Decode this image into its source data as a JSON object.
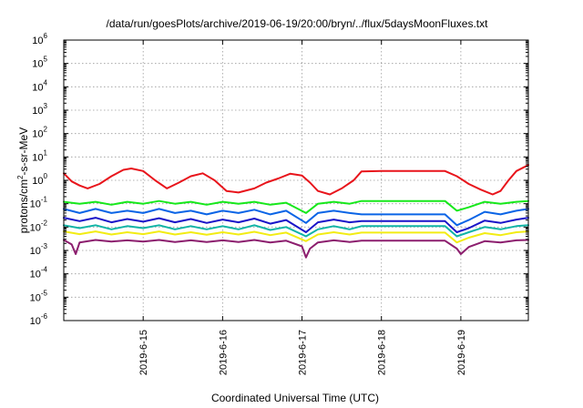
{
  "chart_data": {
    "type": "line",
    "title": "/data/run/goesPlots/archive/2019-06-19/20:00/bryn/../flux/5daysMoonFluxes.txt",
    "xlabel": "Coordinated Universal Time (UTC)",
    "ylabel": {
      "before": "protons/cm",
      "sup": "2",
      "after": "-s-sr-MeV"
    },
    "y_scale": "log",
    "ylim": [
      1e-06,
      1000000.0
    ],
    "y_ticks": [
      {
        "base": "10",
        "exp": "-6",
        "value": 1e-06
      },
      {
        "base": "10",
        "exp": "-5",
        "value": 1e-05
      },
      {
        "base": "10",
        "exp": "-4",
        "value": 0.0001
      },
      {
        "base": "10",
        "exp": "-3",
        "value": 0.001
      },
      {
        "base": "10",
        "exp": "-2",
        "value": 0.01
      },
      {
        "base": "10",
        "exp": "-1",
        "value": 0.1
      },
      {
        "base": "10",
        "exp": "0",
        "value": 1
      },
      {
        "base": "10",
        "exp": "1",
        "value": 10
      },
      {
        "base": "10",
        "exp": "2",
        "value": 100
      },
      {
        "base": "10",
        "exp": "3",
        "value": 1000
      },
      {
        "base": "10",
        "exp": "4",
        "value": 10000
      },
      {
        "base": "10",
        "exp": "5",
        "value": 100000
      },
      {
        "base": "10",
        "exp": "6",
        "value": 1000000
      }
    ],
    "xlim": [
      14.0,
      19.85
    ],
    "x_ticks": [
      {
        "label": "2019-6-15",
        "value": 15
      },
      {
        "label": "2019-6-16",
        "value": 16
      },
      {
        "label": "2019-6-17",
        "value": 17
      },
      {
        "label": "2019-6-18",
        "value": 18
      },
      {
        "label": "2019-6-19",
        "value": 19
      }
    ],
    "grid": true,
    "legend": "none",
    "series": [
      {
        "color": "#e8141b",
        "values": [
          [
            14.0,
            2.0
          ],
          [
            14.1,
            0.9
          ],
          [
            14.2,
            0.6
          ],
          [
            14.3,
            0.45
          ],
          [
            14.45,
            0.7
          ],
          [
            14.6,
            1.5
          ],
          [
            14.75,
            2.8
          ],
          [
            14.85,
            3.2
          ],
          [
            15.0,
            2.5
          ],
          [
            15.15,
            1.0
          ],
          [
            15.3,
            0.45
          ],
          [
            15.45,
            0.8
          ],
          [
            15.6,
            1.5
          ],
          [
            15.75,
            2.0
          ],
          [
            15.9,
            1.0
          ],
          [
            16.05,
            0.35
          ],
          [
            16.2,
            0.3
          ],
          [
            16.4,
            0.45
          ],
          [
            16.55,
            0.8
          ],
          [
            16.7,
            1.2
          ],
          [
            16.85,
            1.9
          ],
          [
            17.0,
            1.6
          ],
          [
            17.1,
            0.8
          ],
          [
            17.2,
            0.35
          ],
          [
            17.35,
            0.25
          ],
          [
            17.5,
            0.45
          ],
          [
            17.65,
            1.0
          ],
          [
            17.75,
            2.4
          ],
          [
            18.0,
            2.5
          ],
          [
            18.5,
            2.5
          ],
          [
            18.8,
            2.5
          ],
          [
            18.95,
            1.5
          ],
          [
            19.1,
            0.7
          ],
          [
            19.25,
            0.4
          ],
          [
            19.4,
            0.25
          ],
          [
            19.5,
            0.35
          ],
          [
            19.6,
            1.0
          ],
          [
            19.7,
            2.5
          ],
          [
            19.85,
            4.5
          ]
        ]
      },
      {
        "color": "#16e81b",
        "values": [
          [
            14.0,
            0.12
          ],
          [
            14.2,
            0.1
          ],
          [
            14.4,
            0.12
          ],
          [
            14.6,
            0.09
          ],
          [
            14.8,
            0.12
          ],
          [
            15.0,
            0.1
          ],
          [
            15.2,
            0.13
          ],
          [
            15.4,
            0.1
          ],
          [
            15.6,
            0.12
          ],
          [
            15.8,
            0.09
          ],
          [
            16.0,
            0.12
          ],
          [
            16.2,
            0.1
          ],
          [
            16.4,
            0.12
          ],
          [
            16.6,
            0.09
          ],
          [
            16.8,
            0.11
          ],
          [
            17.05,
            0.04
          ],
          [
            17.2,
            0.1
          ],
          [
            17.4,
            0.12
          ],
          [
            17.6,
            0.1
          ],
          [
            17.75,
            0.13
          ],
          [
            18.8,
            0.13
          ],
          [
            18.95,
            0.05
          ],
          [
            19.1,
            0.07
          ],
          [
            19.3,
            0.12
          ],
          [
            19.5,
            0.1
          ],
          [
            19.7,
            0.12
          ],
          [
            19.85,
            0.13
          ]
        ]
      },
      {
        "color": "#0a64e6",
        "values": [
          [
            14.0,
            0.06
          ],
          [
            14.2,
            0.04
          ],
          [
            14.4,
            0.06
          ],
          [
            14.6,
            0.04
          ],
          [
            14.8,
            0.05
          ],
          [
            15.0,
            0.04
          ],
          [
            15.2,
            0.06
          ],
          [
            15.4,
            0.04
          ],
          [
            15.6,
            0.05
          ],
          [
            15.8,
            0.035
          ],
          [
            16.0,
            0.05
          ],
          [
            16.2,
            0.04
          ],
          [
            16.4,
            0.055
          ],
          [
            16.6,
            0.035
          ],
          [
            16.8,
            0.05
          ],
          [
            17.05,
            0.015
          ],
          [
            17.2,
            0.04
          ],
          [
            17.4,
            0.05
          ],
          [
            17.6,
            0.04
          ],
          [
            17.75,
            0.035
          ],
          [
            18.8,
            0.035
          ],
          [
            18.95,
            0.012
          ],
          [
            19.1,
            0.02
          ],
          [
            19.3,
            0.045
          ],
          [
            19.5,
            0.035
          ],
          [
            19.7,
            0.05
          ],
          [
            19.85,
            0.06
          ]
        ]
      },
      {
        "color": "#1a14c8",
        "values": [
          [
            14.0,
            0.025
          ],
          [
            14.2,
            0.018
          ],
          [
            14.4,
            0.025
          ],
          [
            14.6,
            0.016
          ],
          [
            14.8,
            0.022
          ],
          [
            15.0,
            0.017
          ],
          [
            15.2,
            0.024
          ],
          [
            15.4,
            0.016
          ],
          [
            15.6,
            0.022
          ],
          [
            15.8,
            0.015
          ],
          [
            16.0,
            0.021
          ],
          [
            16.2,
            0.016
          ],
          [
            16.4,
            0.023
          ],
          [
            16.6,
            0.014
          ],
          [
            16.8,
            0.02
          ],
          [
            17.05,
            0.006
          ],
          [
            17.2,
            0.016
          ],
          [
            17.4,
            0.021
          ],
          [
            17.6,
            0.016
          ],
          [
            17.75,
            0.018
          ],
          [
            18.8,
            0.018
          ],
          [
            18.95,
            0.006
          ],
          [
            19.1,
            0.009
          ],
          [
            19.3,
            0.019
          ],
          [
            19.5,
            0.015
          ],
          [
            19.7,
            0.021
          ],
          [
            19.85,
            0.025
          ]
        ]
      },
      {
        "color": "#10b4a6",
        "values": [
          [
            14.0,
            0.012
          ],
          [
            14.2,
            0.009
          ],
          [
            14.4,
            0.012
          ],
          [
            14.6,
            0.008
          ],
          [
            14.8,
            0.011
          ],
          [
            15.0,
            0.009
          ],
          [
            15.2,
            0.012
          ],
          [
            15.4,
            0.008
          ],
          [
            15.6,
            0.011
          ],
          [
            15.8,
            0.008
          ],
          [
            16.0,
            0.011
          ],
          [
            16.2,
            0.008
          ],
          [
            16.4,
            0.012
          ],
          [
            16.6,
            0.0075
          ],
          [
            16.8,
            0.01
          ],
          [
            17.05,
            0.004
          ],
          [
            17.2,
            0.008
          ],
          [
            17.4,
            0.011
          ],
          [
            17.6,
            0.008
          ],
          [
            17.75,
            0.011
          ],
          [
            18.8,
            0.011
          ],
          [
            18.95,
            0.004
          ],
          [
            19.1,
            0.006
          ],
          [
            19.3,
            0.01
          ],
          [
            19.5,
            0.008
          ],
          [
            19.7,
            0.011
          ],
          [
            19.85,
            0.012
          ]
        ]
      },
      {
        "color": "#f2ec14",
        "values": [
          [
            14.0,
            0.0065
          ],
          [
            14.2,
            0.005
          ],
          [
            14.4,
            0.0065
          ],
          [
            14.6,
            0.0048
          ],
          [
            14.8,
            0.006
          ],
          [
            15.0,
            0.005
          ],
          [
            15.2,
            0.0065
          ],
          [
            15.4,
            0.0048
          ],
          [
            15.6,
            0.006
          ],
          [
            15.8,
            0.0047
          ],
          [
            16.0,
            0.006
          ],
          [
            16.2,
            0.0048
          ],
          [
            16.4,
            0.0063
          ],
          [
            16.6,
            0.0045
          ],
          [
            16.8,
            0.0058
          ],
          [
            17.05,
            0.0025
          ],
          [
            17.2,
            0.0048
          ],
          [
            17.4,
            0.006
          ],
          [
            17.6,
            0.0048
          ],
          [
            17.75,
            0.0058
          ],
          [
            18.8,
            0.0058
          ],
          [
            18.95,
            0.0022
          ],
          [
            19.1,
            0.0035
          ],
          [
            19.3,
            0.0055
          ],
          [
            19.5,
            0.0045
          ],
          [
            19.7,
            0.006
          ],
          [
            19.85,
            0.0065
          ]
        ]
      },
      {
        "color": "#8c1e6e",
        "values": [
          [
            14.0,
            0.0028
          ],
          [
            14.1,
            0.0018
          ],
          [
            14.15,
            0.0007
          ],
          [
            14.2,
            0.0022
          ],
          [
            14.4,
            0.0028
          ],
          [
            14.6,
            0.0024
          ],
          [
            14.8,
            0.0027
          ],
          [
            15.0,
            0.0024
          ],
          [
            15.2,
            0.0028
          ],
          [
            15.4,
            0.0023
          ],
          [
            15.6,
            0.0027
          ],
          [
            15.8,
            0.0023
          ],
          [
            16.0,
            0.0027
          ],
          [
            16.2,
            0.0023
          ],
          [
            16.4,
            0.0028
          ],
          [
            16.6,
            0.0022
          ],
          [
            16.8,
            0.0026
          ],
          [
            17.0,
            0.0015
          ],
          [
            17.05,
            0.0005
          ],
          [
            17.1,
            0.0012
          ],
          [
            17.2,
            0.0022
          ],
          [
            17.4,
            0.0027
          ],
          [
            17.6,
            0.0023
          ],
          [
            17.75,
            0.0026
          ],
          [
            18.8,
            0.0026
          ],
          [
            18.95,
            0.0012
          ],
          [
            19.0,
            0.0007
          ],
          [
            19.1,
            0.0014
          ],
          [
            19.3,
            0.0025
          ],
          [
            19.5,
            0.0022
          ],
          [
            19.7,
            0.0027
          ],
          [
            19.85,
            0.0028
          ]
        ]
      }
    ]
  }
}
